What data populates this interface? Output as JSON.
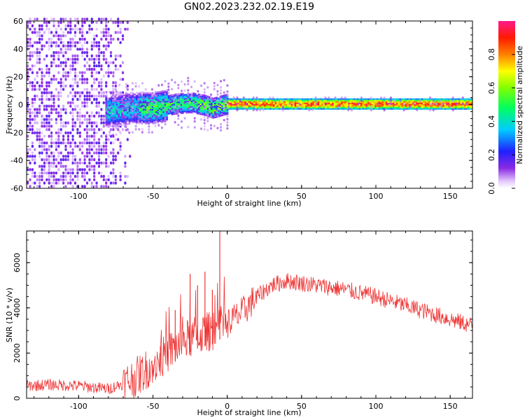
{
  "title": "GN02.2023.232.02.19.E19",
  "chart_data": [
    {
      "type": "heatmap",
      "panel": "spectrogram",
      "xlabel": "Height of straight line (km)",
      "ylabel": "Frequency (Hz)",
      "xlim": [
        -135,
        165
      ],
      "ylim": [
        -60,
        60
      ],
      "x_ticks": [
        -100,
        -50,
        0,
        50,
        100,
        150
      ],
      "y_ticks": [
        60,
        40,
        20,
        0,
        -20,
        -40,
        -60
      ],
      "colorbar": {
        "label": "Normalized spectral amplitude",
        "range": [
          0.0,
          1.0
        ],
        "ticks": [
          0.0,
          0.2,
          0.4,
          0.6,
          0.8
        ],
        "colormap": "rainbow (white-violet-blue-cyan-green-yellow-red-magenta)"
      },
      "ridge_center_hz": [
        {
          "x": -78,
          "y": -5
        },
        {
          "x": -65,
          "y": -3
        },
        {
          "x": -50,
          "y": -3
        },
        {
          "x": -35,
          "y": 0
        },
        {
          "x": -25,
          "y": 1
        },
        {
          "x": -15,
          "y": -1
        },
        {
          "x": -10,
          "y": -3
        },
        {
          "x": 0,
          "y": 0
        },
        {
          "x": 50,
          "y": 0
        },
        {
          "x": 100,
          "y": 0
        },
        {
          "x": 165,
          "y": 0
        }
      ],
      "noise_region_x": [
        -135,
        -65
      ]
    },
    {
      "type": "line",
      "panel": "snr",
      "xlabel": "Height of straight line (km)",
      "ylabel": "SNR (10 * v/v)",
      "xlim": [
        -135,
        165
      ],
      "ylim": [
        0,
        7400
      ],
      "x_ticks": [
        -100,
        -50,
        0,
        50,
        100,
        150
      ],
      "y_ticks": [
        0,
        2000,
        4000,
        6000
      ],
      "color": "#ee3333",
      "series": [
        {
          "x": [
            -135,
            -120,
            -100,
            -90,
            -80,
            -70,
            -60,
            -50,
            -40,
            -30,
            -20,
            -10,
            -5,
            0,
            10,
            20,
            30,
            40,
            50,
            60,
            70,
            80,
            90,
            100,
            110,
            120,
            130,
            140,
            150,
            160,
            165
          ],
          "values": [
            550,
            600,
            550,
            480,
            420,
            650,
            1000,
            1500,
            2000,
            2500,
            2800,
            3000,
            3200,
            3300,
            3800,
            4500,
            5000,
            5200,
            5100,
            5000,
            4900,
            4800,
            4650,
            4500,
            4300,
            4100,
            3900,
            3700,
            3500,
            3300,
            3200
          ]
        }
      ],
      "spikes": [
        {
          "x": -45,
          "y": 2300
        },
        {
          "x": -35,
          "y": 3900
        },
        {
          "x": -25,
          "y": 5500
        },
        {
          "x": -20,
          "y": 5000
        },
        {
          "x": -15,
          "y": 5600
        },
        {
          "x": -10,
          "y": 4800
        },
        {
          "x": -5,
          "y": 7400
        }
      ]
    }
  ]
}
